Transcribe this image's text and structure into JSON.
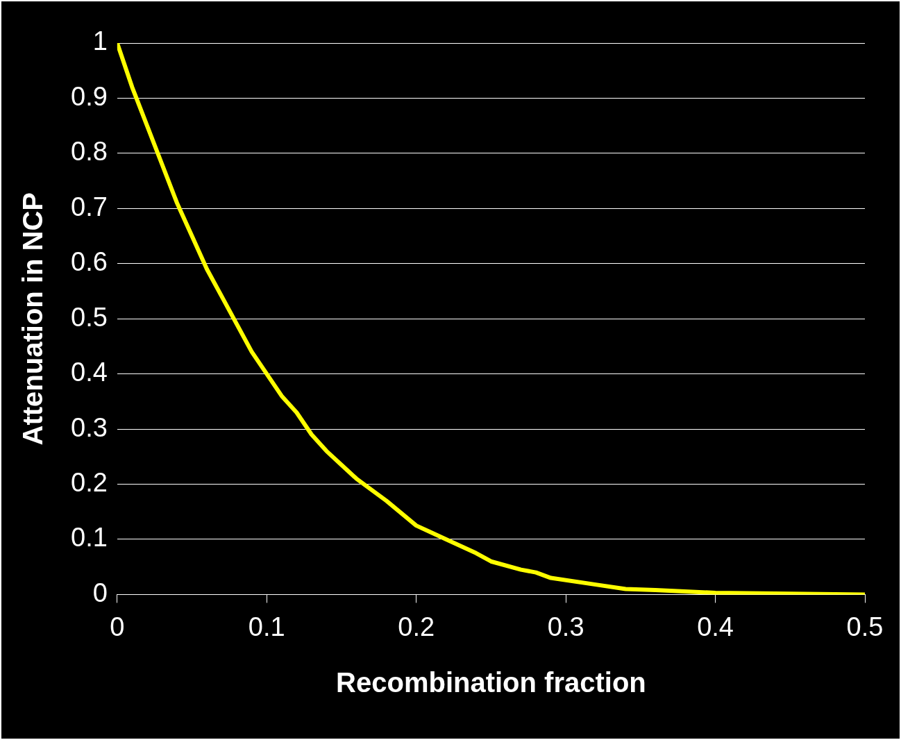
{
  "chart_data": {
    "type": "line",
    "xlabel": "Recombination fraction",
    "ylabel": "Attenuation in NCP",
    "x": [
      0,
      0.01,
      0.02,
      0.03,
      0.04,
      0.05,
      0.06,
      0.07,
      0.08,
      0.09,
      0.1,
      0.11,
      0.12,
      0.13,
      0.14,
      0.15,
      0.16,
      0.18,
      0.2,
      0.22,
      0.24,
      0.25,
      0.27,
      0.28,
      0.29,
      0.32,
      0.34,
      0.36,
      0.4,
      0.5
    ],
    "series": [
      {
        "color": "#ffff00",
        "values": [
          1,
          0.92,
          0.85,
          0.78,
          0.71,
          0.65,
          0.59,
          0.54,
          0.49,
          0.44,
          0.4,
          0.36,
          0.33,
          0.29,
          0.26,
          0.235,
          0.21,
          0.17,
          0.125,
          0.1,
          0.075,
          0.06,
          0.045,
          0.04,
          0.03,
          0.018,
          0.01,
          0.008,
          0.003,
          0
        ]
      }
    ],
    "xlim": [
      0,
      0.5
    ],
    "xticks": [
      0,
      0.1,
      0.2,
      0.3,
      0.4,
      0.5
    ],
    "ylim": [
      0,
      1
    ],
    "yticks": [
      0,
      0.1,
      0.2,
      0.3,
      0.4,
      0.5,
      0.6,
      0.7,
      0.8,
      0.9,
      1
    ],
    "grid": "y",
    "legend": false,
    "marker": "none",
    "line_style": "solid"
  }
}
